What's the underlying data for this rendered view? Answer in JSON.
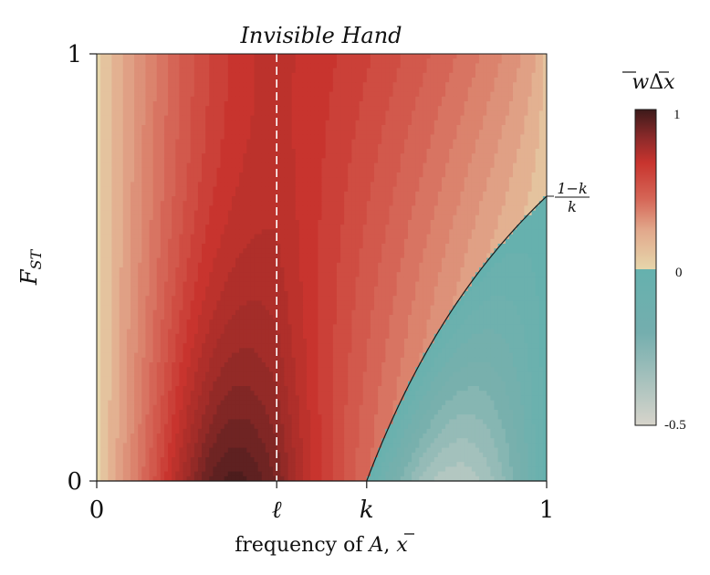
{
  "chart_data": {
    "type": "heatmap",
    "title": "Invisible Hand",
    "xlabel_text": "frequency of ",
    "xlabel_var_a": "A",
    "xlabel_sep": ", ",
    "xlabel_var_x": "x",
    "ylabel_main": "F",
    "ylabel_sub": "ST",
    "x_ticks": [
      {
        "label": "0",
        "value": 0
      },
      {
        "label": "ℓ",
        "value": 0.4
      },
      {
        "label": "k",
        "value": 0.6
      },
      {
        "label": "1",
        "value": 1
      }
    ],
    "y_ticks": [
      {
        "label": "0",
        "value": 0
      },
      {
        "label": "1",
        "value": 1
      }
    ],
    "xlim": [
      0,
      1
    ],
    "ylim": [
      0,
      1
    ],
    "l_value": 0.4,
    "k_value": 0.6,
    "boundary_label": {
      "numerator": "1−k",
      "denominator": "k",
      "value": 0.6667
    },
    "colorbar": {
      "title_w": "w",
      "title_delta": "Δ",
      "title_x": "x",
      "tick_labels": [
        "1",
        "0",
        "-0.5"
      ],
      "tick_values": [
        1,
        0,
        -0.5
      ],
      "range": [
        -0.5,
        1
      ]
    },
    "colors": {
      "pos_dark": "#3d1a1a",
      "pos_mid": "#c8342e",
      "pos_light": "#e2a98c",
      "zero": "#e6d6ab",
      "neg_mid": "#66b1ae",
      "neg_light": "#d7d4cb"
    }
  }
}
